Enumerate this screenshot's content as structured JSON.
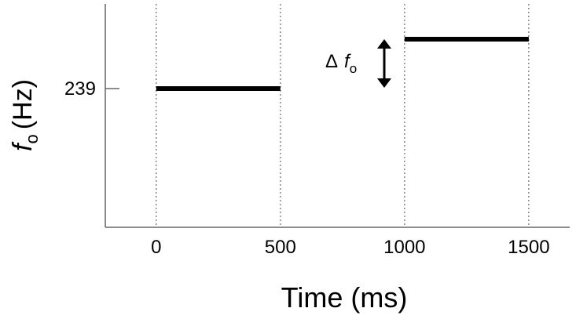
{
  "chart_data": {
    "type": "line",
    "xlabel": "Time (ms)",
    "ylabel": {
      "symbol": "f",
      "subscript": "o",
      "unit": "(Hz)"
    },
    "annotation": {
      "text": "Δ",
      "symbol": "f",
      "subscript": "o"
    },
    "series": [
      {
        "color": "#000000",
        "x": [
          0,
          500
        ],
        "values": [
          239,
          239
        ]
      },
      {
        "color": "#000000",
        "x": [
          1000,
          1500
        ],
        "values": [
          260,
          260
        ]
      }
    ],
    "xlim": [
      -205,
      1665
    ],
    "xticks": [
      0,
      500,
      1000,
      1500
    ],
    "ylim": [
      180,
      275
    ],
    "yticks": [
      239
    ],
    "grid": true
  }
}
